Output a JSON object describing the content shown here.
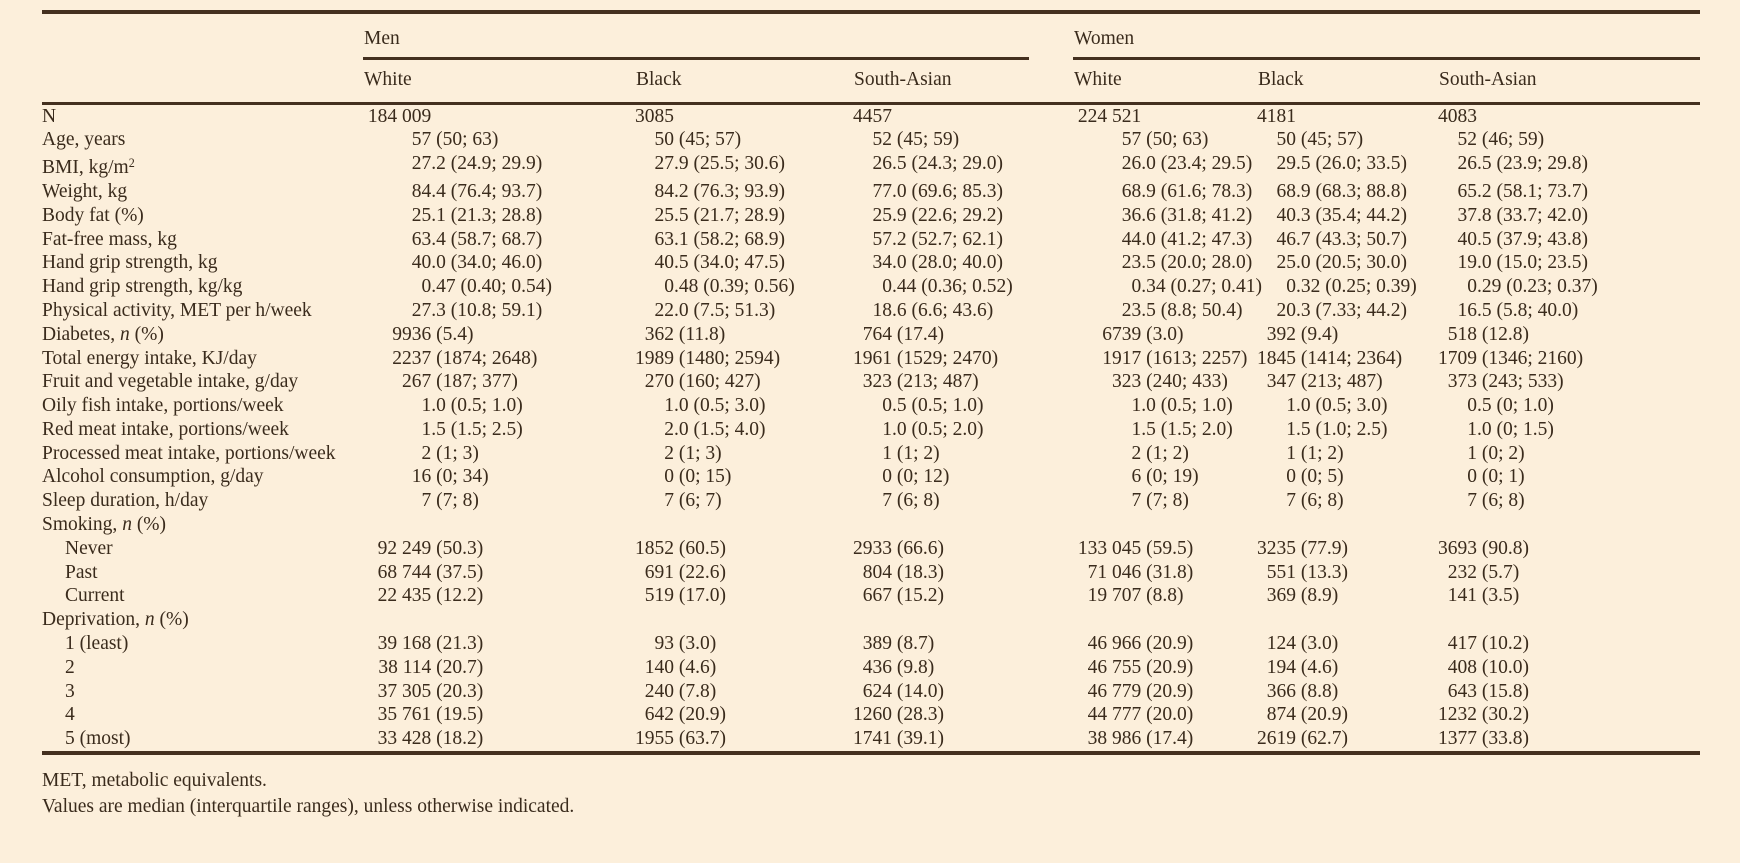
{
  "colors": {
    "background": "#fcefdb",
    "text": "#3a2b1c",
    "rule": "#44301f"
  },
  "table": {
    "header": {
      "groups": [
        {
          "label": "Men"
        },
        {
          "label": "Women"
        }
      ],
      "subcolumns": [
        "White",
        "Black",
        "South-Asian",
        "White",
        "Black",
        "South-Asian"
      ]
    },
    "ip_ch": [
      7,
      4,
      4,
      7,
      4,
      4
    ],
    "rows": [
      {
        "parts": [
          {
            "t": "N"
          }
        ],
        "values": [
          "184 009",
          "3085",
          "4457",
          "224 521",
          "4181",
          "4083"
        ]
      },
      {
        "parts": [
          {
            "t": "Age, years"
          }
        ],
        "values": [
          "57 (50; 63)",
          "50 (45; 57)",
          "52 (45; 59)",
          "57 (50; 63)",
          "50 (45; 57)",
          "52 (46; 59)"
        ]
      },
      {
        "parts": [
          {
            "t": "BMI, kg/m"
          },
          {
            "t": "2",
            "s": "sup"
          }
        ],
        "values": [
          "27.2 (24.9; 29.9)",
          "27.9 (25.5; 30.6)",
          "26.5 (24.3; 29.0)",
          "26.0 (23.4; 29.5)",
          "29.5 (26.0; 33.5)",
          "26.5 (23.9; 29.8)"
        ]
      },
      {
        "parts": [
          {
            "t": "Weight, kg"
          }
        ],
        "values": [
          "84.4 (76.4; 93.7)",
          "84.2 (76.3; 93.9)",
          "77.0 (69.6; 85.3)",
          "68.9 (61.6; 78.3)",
          "68.9 (68.3; 88.8)",
          "65.2 (58.1; 73.7)"
        ]
      },
      {
        "parts": [
          {
            "t": "Body fat (%)"
          }
        ],
        "values": [
          "25.1 (21.3; 28.8)",
          "25.5 (21.7; 28.9)",
          "25.9 (22.6; 29.2)",
          "36.6 (31.8; 41.2)",
          "40.3 (35.4; 44.2)",
          "37.8 (33.7; 42.0)"
        ]
      },
      {
        "parts": [
          {
            "t": "Fat-free mass, kg"
          }
        ],
        "values": [
          "63.4 (58.7; 68.7)",
          "63.1 (58.2; 68.9)",
          "57.2 (52.7; 62.1)",
          "44.0 (41.2; 47.3)",
          "46.7 (43.3; 50.7)",
          "40.5 (37.9; 43.8)"
        ]
      },
      {
        "parts": [
          {
            "t": "Hand grip strength, kg"
          }
        ],
        "values": [
          "40.0 (34.0; 46.0)",
          "40.5 (34.0; 47.5)",
          "34.0 (28.0; 40.0)",
          "23.5 (20.0; 28.0)",
          "25.0 (20.5; 30.0)",
          "19.0 (15.0; 23.5)"
        ]
      },
      {
        "parts": [
          {
            "t": "Hand grip strength, kg/kg"
          }
        ],
        "values": [
          "0.47 (0.40; 0.54)",
          "0.48 (0.39; 0.56)",
          "0.44 (0.36; 0.52)",
          "0.34 (0.27; 0.41)",
          "0.32 (0.25; 0.39)",
          "0.29 (0.23; 0.37)"
        ]
      },
      {
        "parts": [
          {
            "t": "Physical activity, MET per h/week"
          }
        ],
        "values": [
          "27.3 (10.8; 59.1)",
          "22.0 (7.5; 51.3)",
          "18.6 (6.6; 43.6)",
          "23.5 (8.8; 50.4)",
          "20.3 (7.33; 44.2)",
          "16.5 (5.8; 40.0)"
        ]
      },
      {
        "parts": [
          {
            "t": "Diabetes, "
          },
          {
            "t": "n",
            "s": "i"
          },
          {
            "t": " (%)"
          }
        ],
        "values": [
          "9936 (5.4)",
          "362 (11.8)",
          "764 (17.4)",
          "6739 (3.0)",
          "392 (9.4)",
          "518 (12.8)"
        ]
      },
      {
        "parts": [
          {
            "t": "Total energy intake, KJ/day"
          }
        ],
        "values": [
          "2237 (1874; 2648)",
          "1989 (1480; 2594)",
          "1961 (1529; 2470)",
          "1917 (1613; 2257)",
          "1845 (1414; 2364)",
          "1709 (1346; 2160)"
        ]
      },
      {
        "parts": [
          {
            "t": "Fruit and vegetable intake, g/day"
          }
        ],
        "values": [
          "267 (187; 377)",
          "270 (160; 427)",
          "323 (213; 487)",
          "323 (240; 433)",
          "347 (213; 487)",
          "373 (243; 533)"
        ]
      },
      {
        "parts": [
          {
            "t": "Oily fish intake, portions/week"
          }
        ],
        "values": [
          "1.0 (0.5; 1.0)",
          "1.0 (0.5; 3.0)",
          "0.5 (0.5; 1.0)",
          "1.0 (0.5; 1.0)",
          "1.0 (0.5; 3.0)",
          "0.5 (0; 1.0)"
        ]
      },
      {
        "parts": [
          {
            "t": "Red meat intake, portions/week"
          }
        ],
        "values": [
          "1.5 (1.5; 2.5)",
          "2.0 (1.5; 4.0)",
          "1.0 (0.5; 2.0)",
          "1.5 (1.5; 2.0)",
          "1.5 (1.0; 2.5)",
          "1.0 (0; 1.5)"
        ]
      },
      {
        "parts": [
          {
            "t": "Processed meat intake, portions/week"
          }
        ],
        "values": [
          "2 (1; 3)",
          "2 (1; 3)",
          "1 (1; 2)",
          "2 (1; 2)",
          "1 (1; 2)",
          "1 (0; 2)"
        ]
      },
      {
        "parts": [
          {
            "t": "Alcohol consumption, g/day"
          }
        ],
        "values": [
          "16 (0; 34)",
          "0 (0; 15)",
          "0 (0; 12)",
          "6 (0; 19)",
          "0 (0; 5)",
          "0 (0; 1)"
        ]
      },
      {
        "parts": [
          {
            "t": "Sleep duration, h/day"
          }
        ],
        "values": [
          "7 (7; 8)",
          "7 (6; 7)",
          "7 (6; 8)",
          "7 (7; 8)",
          "7 (6; 8)",
          "7 (6; 8)"
        ]
      },
      {
        "parts": [
          {
            "t": "Smoking, "
          },
          {
            "t": "n",
            "s": "i"
          },
          {
            "t": " (%)"
          }
        ],
        "group": true,
        "values": null
      },
      {
        "parts": [
          {
            "t": "Never"
          }
        ],
        "indent": true,
        "values": [
          "92 249 (50.3)",
          "1852 (60.5)",
          "2933 (66.6)",
          "133 045 (59.5)",
          "3235 (77.9)",
          "3693 (90.8)"
        ]
      },
      {
        "parts": [
          {
            "t": "Past"
          }
        ],
        "indent": true,
        "values": [
          "68 744 (37.5)",
          "691 (22.6)",
          "804 (18.3)",
          "71 046 (31.8)",
          "551 (13.3)",
          "232 (5.7)"
        ]
      },
      {
        "parts": [
          {
            "t": "Current"
          }
        ],
        "indent": true,
        "values": [
          "22 435 (12.2)",
          "519 (17.0)",
          "667 (15.2)",
          "19 707 (8.8)",
          "369 (8.9)",
          "141 (3.5)"
        ]
      },
      {
        "parts": [
          {
            "t": "Deprivation, "
          },
          {
            "t": "n",
            "s": "i"
          },
          {
            "t": " (%)"
          }
        ],
        "group": true,
        "values": null
      },
      {
        "parts": [
          {
            "t": "1 (least)"
          }
        ],
        "indent": true,
        "values": [
          "39 168 (21.3)",
          "93 (3.0)",
          "389 (8.7)",
          "46 966 (20.9)",
          "124 (3.0)",
          "417 (10.2)"
        ]
      },
      {
        "parts": [
          {
            "t": "2"
          }
        ],
        "indent": true,
        "values": [
          "38 114 (20.7)",
          "140 (4.6)",
          "436 (9.8)",
          "46 755 (20.9)",
          "194 (4.6)",
          "408 (10.0)"
        ]
      },
      {
        "parts": [
          {
            "t": "3"
          }
        ],
        "indent": true,
        "values": [
          "37 305 (20.3)",
          "240 (7.8)",
          "624 (14.0)",
          "46 779 (20.9)",
          "366 (8.8)",
          "643 (15.8)"
        ]
      },
      {
        "parts": [
          {
            "t": "4"
          }
        ],
        "indent": true,
        "values": [
          "35 761 (19.5)",
          "642 (20.9)",
          "1260 (28.3)",
          "44 777 (20.0)",
          "874 (20.9)",
          "1232 (30.2)"
        ]
      },
      {
        "parts": [
          {
            "t": "5 (most)"
          }
        ],
        "indent": true,
        "values": [
          "33 428 (18.2)",
          "1955 (63.7)",
          "1741 (39.1)",
          "38 986 (17.4)",
          "2619 (62.7)",
          "1377 (33.8)"
        ]
      }
    ]
  },
  "footnotes": [
    "MET, metabolic equivalents.",
    "Values are median (interquartile ranges), unless otherwise indicated."
  ]
}
